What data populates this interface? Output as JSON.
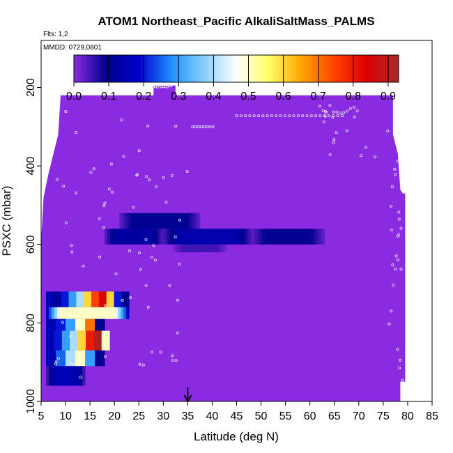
{
  "chart_data": {
    "type": "heatmap",
    "title": "ATOM1 Northeast_Pacific AlkaliSaltMass_PALMS",
    "flights_label": "Flts: 1,2",
    "date_label": "MMDD: 0729,0801",
    "xlabel": "Latitude (deg N)",
    "ylabel": "PSXC (mbar)",
    "xlim": [
      5,
      85
    ],
    "ylim": [
      1000,
      80
    ],
    "y_reversed": true,
    "x_ticks": [
      "5",
      "10",
      "15",
      "20",
      "25",
      "30",
      "35",
      "40",
      "45",
      "50",
      "55",
      "60",
      "65",
      "70",
      "75",
      "80",
      "85"
    ],
    "y_ticks": [
      "200",
      "400",
      "600",
      "800",
      "1000"
    ],
    "colorbar": {
      "range": [
        0,
        0.93
      ],
      "ticks": [
        "0.0",
        "0.1",
        "0.2",
        "0.3",
        "0.4",
        "0.5",
        "0.6",
        "0.7",
        "0.8",
        "0.9"
      ],
      "colors": [
        "#8a2be2",
        "#00008b",
        "#0000cd",
        "#1e90ff",
        "#87cefa",
        "#ffffff",
        "#ffff66",
        "#ffa500",
        "#ff4500",
        "#dd0000",
        "#a52a2a"
      ]
    },
    "background_value": 0.0,
    "curtain_top_profile": [
      [
        5,
        590
      ],
      [
        5.5,
        480
      ],
      [
        6.5,
        420
      ],
      [
        7.5,
        370
      ],
      [
        8.5,
        320
      ],
      [
        9,
        220
      ],
      [
        28,
        220
      ],
      [
        28,
        195
      ],
      [
        32.5,
        195
      ],
      [
        32.5,
        220
      ],
      [
        77,
        220
      ],
      [
        77,
        320
      ],
      [
        78,
        370
      ],
      [
        78.5,
        460
      ],
      [
        79,
        470
      ],
      [
        79.5,
        470
      ]
    ],
    "curtain_bottom_profile": [
      [
        79.5,
        950
      ],
      [
        78.5,
        950
      ],
      [
        78.5,
        1000
      ],
      [
        5,
        1000
      ]
    ],
    "patches": [
      {
        "lat": [
          21,
          37.5
        ],
        "p": [
          520,
          560
        ],
        "value": 0.1
      },
      {
        "lat": [
          18,
          30
        ],
        "p": [
          560,
          600
        ],
        "value": 0.12
      },
      {
        "lat": [
          30,
          48
        ],
        "p": [
          560,
          600
        ],
        "value": 0.14
      },
      {
        "lat": [
          48,
          63
        ],
        "p": [
          560,
          600
        ],
        "value": 0.09
      },
      {
        "lat": [
          32,
          43
        ],
        "p": [
          600,
          620
        ],
        "value": 0.05
      },
      {
        "lat": [
          6,
          23
        ],
        "p": [
          720,
          760
        ],
        "value": [
          0.15,
          0.12,
          0.2,
          0.3,
          0.4,
          0.6,
          0.75,
          0.85,
          0.6,
          0.2,
          0.1
        ]
      },
      {
        "lat": [
          6,
          23
        ],
        "p": [
          760,
          790
        ],
        "value": 0.5
      },
      {
        "lat": [
          6,
          18
        ],
        "p": [
          790,
          820
        ],
        "value": [
          0.15,
          0.2,
          0.3,
          0.5,
          0.7,
          0.1
        ]
      },
      {
        "lat": [
          6,
          19
        ],
        "p": [
          820,
          870
        ],
        "value": [
          0.15,
          0.2,
          0.3,
          0.4,
          0.6,
          0.8,
          0.9,
          0.5
        ]
      },
      {
        "lat": [
          6,
          18
        ],
        "p": [
          870,
          910
        ],
        "value": [
          0.15,
          0.25,
          0.4,
          0.5,
          0.3,
          0.1
        ]
      },
      {
        "lat": [
          6,
          14
        ],
        "p": [
          910,
          960
        ],
        "value": 0.15
      }
    ],
    "arrow_lat": 35
  }
}
